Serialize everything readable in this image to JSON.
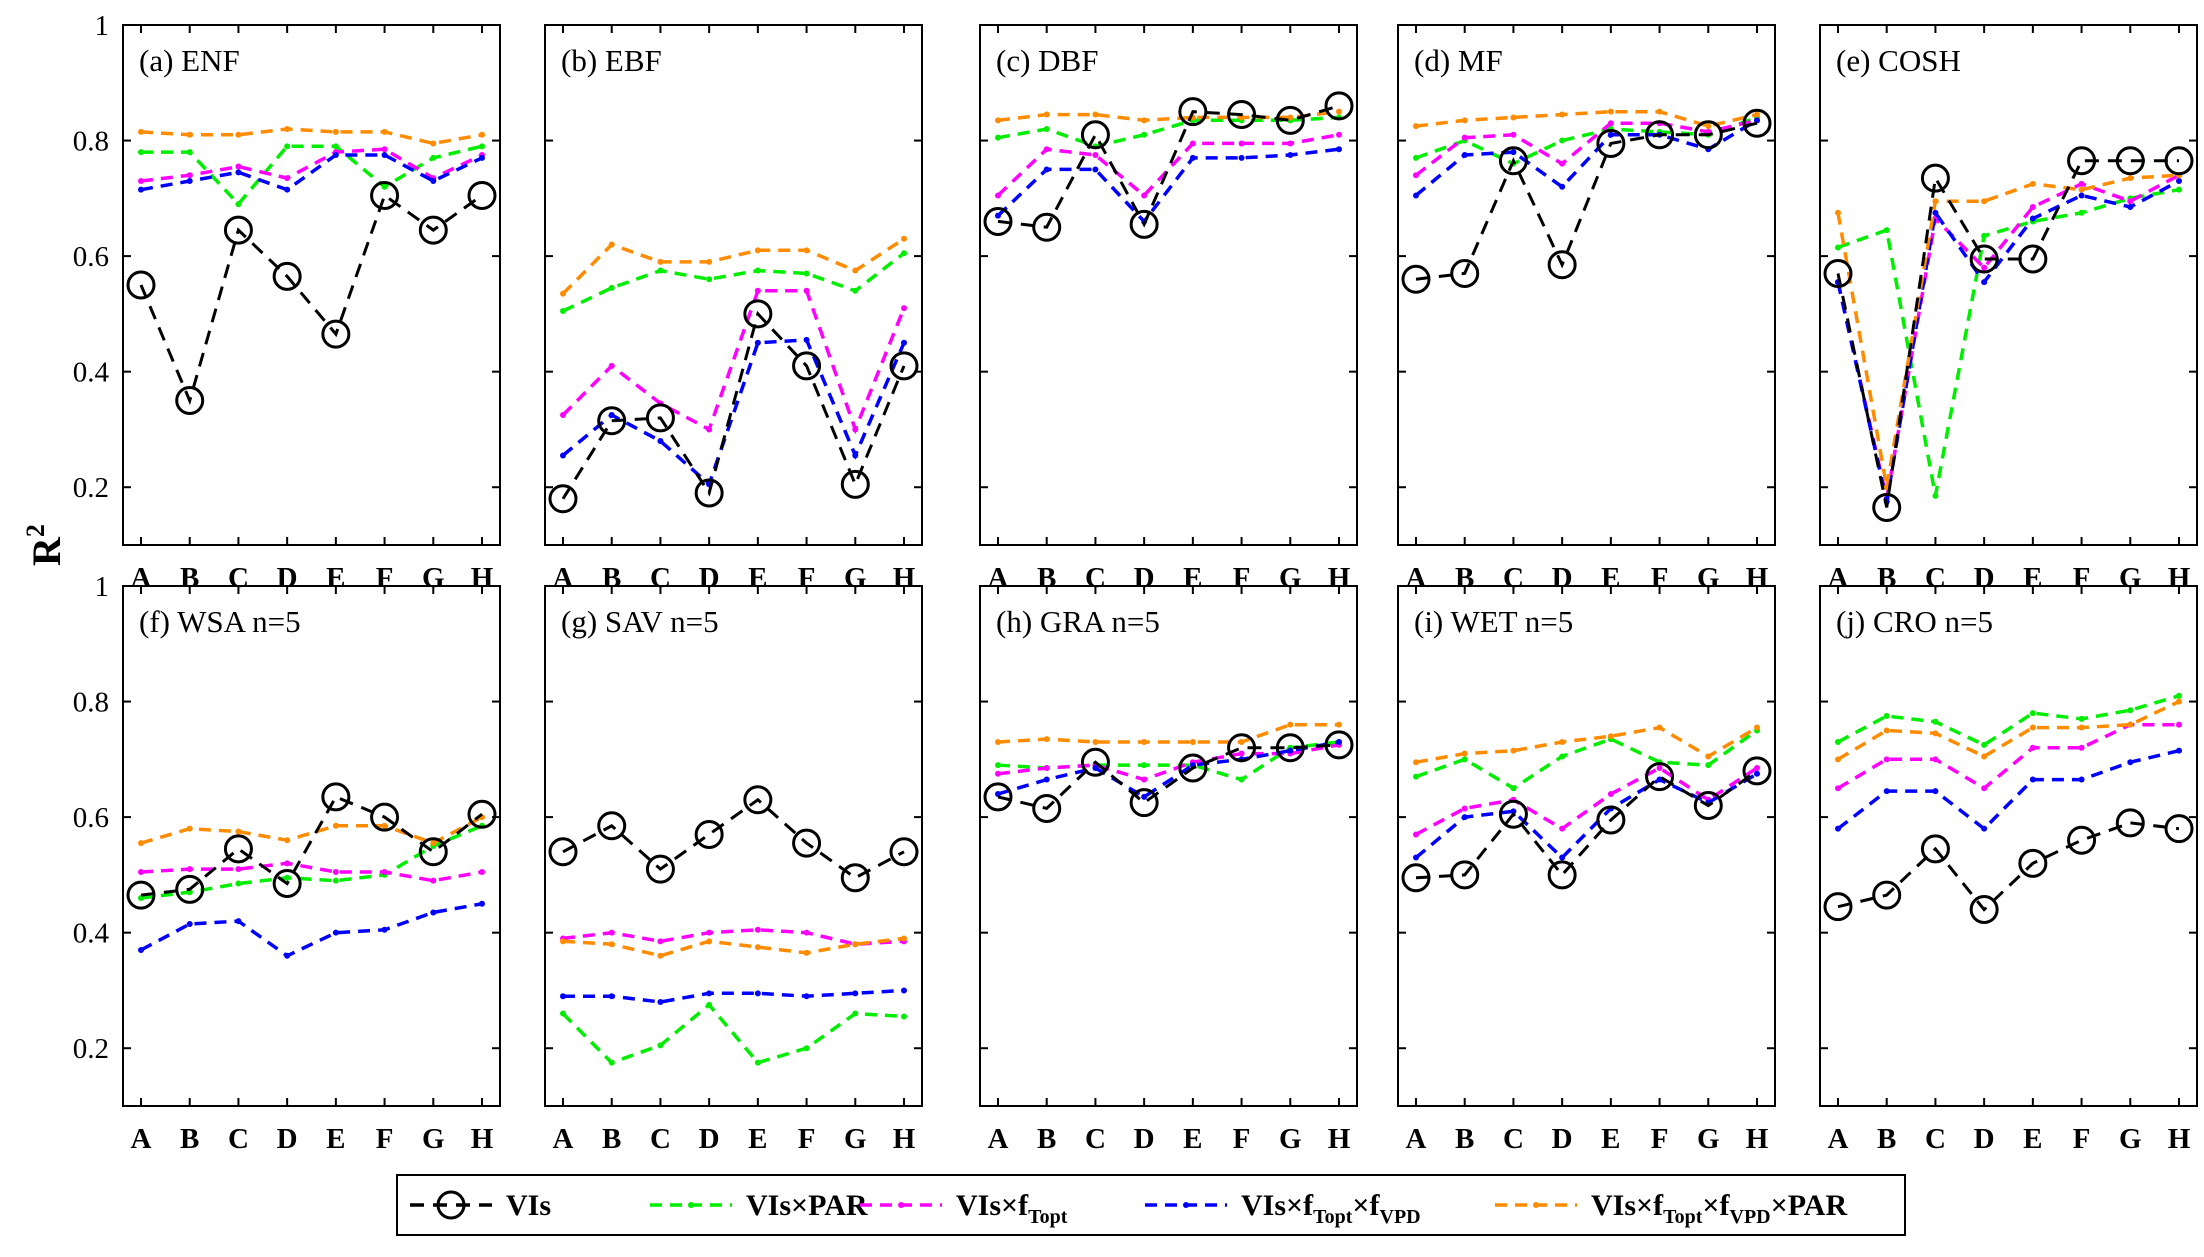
{
  "chart_data": {
    "type": "line",
    "ylabel": "R",
    "ylabel_sup": "2",
    "ylim": [
      0.1,
      1.0
    ],
    "yticks": [
      "0.2",
      "0.4",
      "0.6",
      "0.8",
      "1"
    ],
    "categories": [
      "A",
      "B",
      "C",
      "D",
      "E",
      "F",
      "G",
      "H"
    ],
    "colors": {
      "VIs": "#000000",
      "VIs_PAR": "#00ee00",
      "VIs_fTopt": "#ff00ff",
      "VIs_fTopt_fVPD": "#0000ff",
      "VIs_fTopt_fVPD_PAR": "#ff8c00"
    },
    "legend": [
      {
        "key": "VIs",
        "label": "VIs",
        "parts": [
          [
            "VIs",
            false
          ]
        ]
      },
      {
        "key": "VIs_PAR",
        "label": "VIs×PAR",
        "parts": [
          [
            "VIs×PAR",
            false
          ]
        ]
      },
      {
        "key": "VIs_fTopt",
        "label": "VIs×fTopt",
        "parts": [
          [
            "VIs×f",
            false
          ],
          [
            "Topt",
            true
          ]
        ]
      },
      {
        "key": "VIs_fTopt_fVPD",
        "label": "VIs×fTopt×fVPD",
        "parts": [
          [
            "VIs×f",
            false
          ],
          [
            "Topt",
            true
          ],
          [
            "×f",
            false
          ],
          [
            "VPD",
            true
          ]
        ]
      },
      {
        "key": "VIs_fTopt_fVPD_PAR",
        "label": "VIs×fTopt×fVPD×PAR",
        "parts": [
          [
            "VIs×f",
            false
          ],
          [
            "Topt",
            true
          ],
          [
            "×f",
            false
          ],
          [
            "VPD",
            true
          ],
          [
            "×PAR",
            false
          ]
        ]
      }
    ],
    "panels": [
      {
        "title": "(a) ENF",
        "series": {
          "VIs": [
            0.55,
            0.35,
            0.645,
            0.565,
            0.465,
            0.705,
            0.645,
            0.705
          ],
          "VIs_PAR": [
            0.78,
            0.78,
            0.69,
            0.79,
            0.79,
            0.72,
            0.77,
            0.79
          ],
          "VIs_fTopt": [
            0.73,
            0.74,
            0.755,
            0.735,
            0.78,
            0.785,
            0.735,
            0.775
          ],
          "VIs_fTopt_fVPD": [
            0.715,
            0.73,
            0.745,
            0.715,
            0.775,
            0.775,
            0.73,
            0.77
          ],
          "VIs_fTopt_fVPD_PAR": [
            0.815,
            0.81,
            0.81,
            0.82,
            0.815,
            0.815,
            0.795,
            0.81
          ]
        }
      },
      {
        "title": "(b) EBF",
        "series": {
          "VIs": [
            0.18,
            0.315,
            0.32,
            0.19,
            0.5,
            0.41,
            0.205,
            0.41
          ],
          "VIs_PAR": [
            0.505,
            0.545,
            0.575,
            0.56,
            0.575,
            0.57,
            0.54,
            0.605
          ],
          "VIs_fTopt": [
            0.325,
            0.41,
            0.345,
            0.3,
            0.54,
            0.54,
            0.3,
            0.51
          ],
          "VIs_fTopt_fVPD": [
            0.255,
            0.325,
            0.28,
            0.205,
            0.45,
            0.455,
            0.255,
            0.45
          ],
          "VIs_fTopt_fVPD_PAR": [
            0.535,
            0.62,
            0.59,
            0.59,
            0.61,
            0.61,
            0.575,
            0.63
          ]
        }
      },
      {
        "title": "(c) DBF",
        "series": {
          "VIs": [
            0.66,
            0.65,
            0.81,
            0.655,
            0.85,
            0.845,
            0.835,
            0.86
          ],
          "VIs_PAR": [
            0.805,
            0.82,
            0.79,
            0.81,
            0.835,
            0.835,
            0.835,
            0.84
          ],
          "VIs_fTopt": [
            0.705,
            0.785,
            0.775,
            0.705,
            0.795,
            0.795,
            0.795,
            0.81
          ],
          "VIs_fTopt_fVPD": [
            0.67,
            0.75,
            0.75,
            0.66,
            0.77,
            0.77,
            0.775,
            0.785
          ],
          "VIs_fTopt_fVPD_PAR": [
            0.835,
            0.845,
            0.845,
            0.835,
            0.84,
            0.84,
            0.84,
            0.85
          ]
        }
      },
      {
        "title": "(d) MF",
        "series": {
          "VIs": [
            0.56,
            0.57,
            0.765,
            0.585,
            0.795,
            0.81,
            0.81,
            0.83
          ],
          "VIs_PAR": [
            0.77,
            0.8,
            0.76,
            0.8,
            0.82,
            0.815,
            0.81,
            0.84
          ],
          "VIs_fTopt": [
            0.74,
            0.805,
            0.81,
            0.76,
            0.83,
            0.83,
            0.815,
            0.835
          ],
          "VIs_fTopt_fVPD": [
            0.705,
            0.775,
            0.78,
            0.72,
            0.81,
            0.81,
            0.785,
            0.835
          ],
          "VIs_fTopt_fVPD_PAR": [
            0.825,
            0.835,
            0.84,
            0.845,
            0.85,
            0.85,
            0.825,
            0.845
          ]
        }
      },
      {
        "title": "(e) COSH",
        "series": {
          "VIs": [
            0.57,
            0.165,
            0.735,
            0.595,
            0.595,
            0.765,
            0.765,
            0.765
          ],
          "VIs_PAR": [
            0.615,
            0.645,
            0.185,
            0.635,
            0.66,
            0.675,
            0.7,
            0.715
          ],
          "VIs_fTopt": [
            0.555,
            0.18,
            0.665,
            0.58,
            0.685,
            0.725,
            0.695,
            0.74
          ],
          "VIs_fTopt_fVPD": [
            0.555,
            0.175,
            0.675,
            0.555,
            0.665,
            0.705,
            0.685,
            0.73
          ],
          "VIs_fTopt_fVPD_PAR": [
            0.675,
            0.2,
            0.695,
            0.695,
            0.725,
            0.715,
            0.735,
            0.74
          ]
        }
      },
      {
        "title": "(f) WSA  n=5",
        "series": {
          "VIs": [
            0.465,
            0.475,
            0.545,
            0.485,
            0.635,
            0.6,
            0.54,
            0.605
          ],
          "VIs_PAR": [
            0.46,
            0.47,
            0.485,
            0.495,
            0.49,
            0.5,
            0.55,
            0.585
          ],
          "VIs_fTopt": [
            0.505,
            0.51,
            0.51,
            0.52,
            0.505,
            0.505,
            0.49,
            0.505
          ],
          "VIs_fTopt_fVPD": [
            0.37,
            0.415,
            0.42,
            0.36,
            0.4,
            0.405,
            0.435,
            0.45
          ],
          "VIs_fTopt_fVPD_PAR": [
            0.555,
            0.58,
            0.575,
            0.56,
            0.585,
            0.585,
            0.555,
            0.6
          ]
        }
      },
      {
        "title": "(g) SAV  n=5",
        "series": {
          "VIs": [
            0.54,
            0.585,
            0.51,
            0.57,
            0.63,
            0.555,
            0.495,
            0.54
          ],
          "VIs_PAR": [
            0.26,
            0.175,
            0.205,
            0.275,
            0.175,
            0.2,
            0.26,
            0.255
          ],
          "VIs_fTopt": [
            0.39,
            0.4,
            0.385,
            0.4,
            0.405,
            0.4,
            0.38,
            0.385
          ],
          "VIs_fTopt_fVPD": [
            0.29,
            0.29,
            0.28,
            0.295,
            0.295,
            0.29,
            0.295,
            0.3
          ],
          "VIs_fTopt_fVPD_PAR": [
            0.385,
            0.38,
            0.36,
            0.385,
            0.375,
            0.365,
            0.38,
            0.39
          ]
        }
      },
      {
        "title": "(h) GRA  n=5",
        "series": {
          "VIs": [
            0.635,
            0.615,
            0.695,
            0.625,
            0.685,
            0.72,
            0.72,
            0.725
          ],
          "VIs_PAR": [
            0.69,
            0.685,
            0.69,
            0.69,
            0.69,
            0.665,
            0.72,
            0.73
          ],
          "VIs_fTopt": [
            0.675,
            0.685,
            0.69,
            0.665,
            0.695,
            0.71,
            0.71,
            0.725
          ],
          "VIs_fTopt_fVPD": [
            0.64,
            0.665,
            0.685,
            0.635,
            0.69,
            0.7,
            0.715,
            0.73
          ],
          "VIs_fTopt_fVPD_PAR": [
            0.73,
            0.735,
            0.73,
            0.73,
            0.73,
            0.73,
            0.76,
            0.76
          ]
        }
      },
      {
        "title": "(i) WET  n=5",
        "series": {
          "VIs": [
            0.495,
            0.5,
            0.605,
            0.5,
            0.595,
            0.67,
            0.62,
            0.68
          ],
          "VIs_PAR": [
            0.67,
            0.7,
            0.65,
            0.705,
            0.735,
            0.695,
            0.69,
            0.75
          ],
          "VIs_fTopt": [
            0.57,
            0.615,
            0.63,
            0.58,
            0.64,
            0.685,
            0.63,
            0.685
          ],
          "VIs_fTopt_fVPD": [
            0.53,
            0.6,
            0.61,
            0.53,
            0.615,
            0.665,
            0.625,
            0.675
          ],
          "VIs_fTopt_fVPD_PAR": [
            0.695,
            0.71,
            0.715,
            0.73,
            0.74,
            0.755,
            0.705,
            0.755
          ]
        }
      },
      {
        "title": "(j) CRO  n=5",
        "series": {
          "VIs": [
            0.445,
            0.465,
            0.545,
            0.44,
            0.52,
            0.56,
            0.59,
            0.58
          ],
          "VIs_PAR": [
            0.73,
            0.775,
            0.765,
            0.725,
            0.78,
            0.77,
            0.785,
            0.81
          ],
          "VIs_fTopt": [
            0.65,
            0.7,
            0.7,
            0.65,
            0.72,
            0.72,
            0.76,
            0.76
          ],
          "VIs_fTopt_fVPD": [
            0.58,
            0.645,
            0.645,
            0.58,
            0.665,
            0.665,
            0.695,
            0.715
          ],
          "VIs_fTopt_fVPD_PAR": [
            0.7,
            0.75,
            0.745,
            0.705,
            0.755,
            0.755,
            0.76,
            0.8
          ]
        }
      }
    ]
  }
}
